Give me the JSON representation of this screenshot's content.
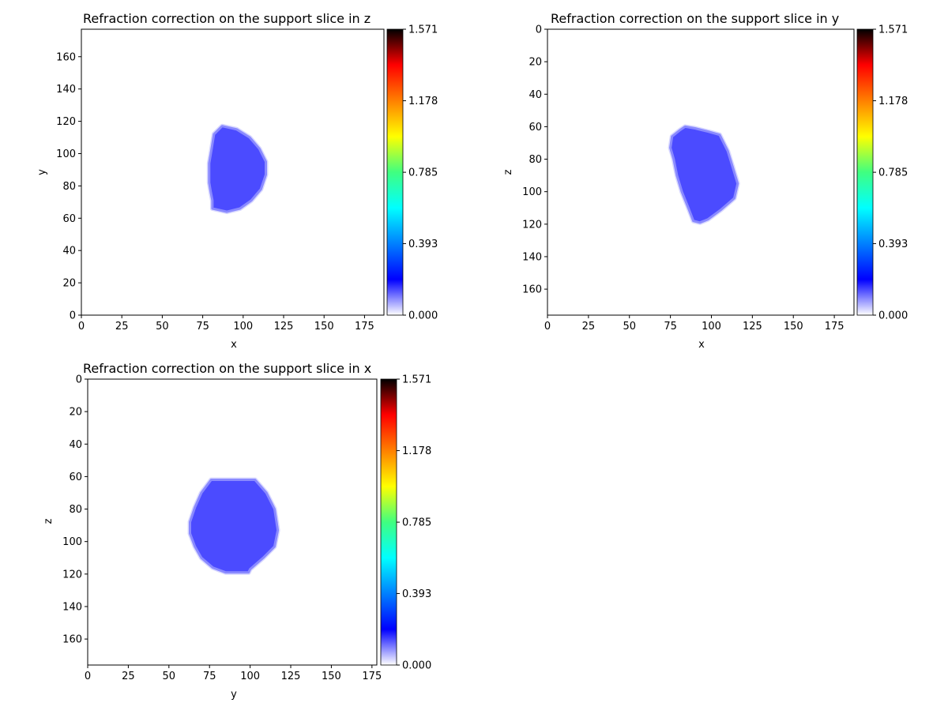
{
  "figure": {
    "background": "#ffffff",
    "colormap": "white-blue-cyan-green-yellow-orange-red-black",
    "colormap_stops": [
      "#ffffff",
      "#0000ff",
      "#0080ff",
      "#00ffff",
      "#40ff80",
      "#ffff00",
      "#ff8000",
      "#ff0000",
      "#000000"
    ],
    "shape_color": "#4b4bff",
    "shape_edge_color": "#eaeaff"
  },
  "chart_data": [
    {
      "type": "heatmap",
      "title": "Refraction correction on the support slice in z",
      "xlabel": "x",
      "ylabel": "y",
      "xlim": [
        0,
        187
      ],
      "ylim": [
        0,
        177
      ],
      "y_direction": "up",
      "x_ticks": [
        "0",
        "25",
        "50",
        "75",
        "100",
        "125",
        "150",
        "175"
      ],
      "y_ticks": [
        "0",
        "20",
        "40",
        "60",
        "80",
        "100",
        "120",
        "140",
        "160"
      ],
      "colorbar": {
        "min": 0.0,
        "max": 1.571,
        "ticks": [
          "0.000",
          "0.393",
          "0.785",
          "1.178",
          "1.571"
        ]
      },
      "support_outline": [
        [
          87,
          117
        ],
        [
          96,
          115
        ],
        [
          104,
          110
        ],
        [
          110,
          103
        ],
        [
          114,
          95
        ],
        [
          114,
          87
        ],
        [
          111,
          78
        ],
        [
          105,
          71
        ],
        [
          98,
          66
        ],
        [
          90,
          64
        ],
        [
          81,
          66
        ],
        [
          81,
          71
        ],
        [
          80,
          76
        ],
        [
          79,
          82
        ],
        [
          79,
          88
        ],
        [
          79,
          94
        ],
        [
          80,
          100
        ],
        [
          81,
          106
        ],
        [
          82,
          112
        ]
      ],
      "value_range": [
        0.0,
        0.2
      ]
    },
    {
      "type": "heatmap",
      "title": "Refraction correction on the support slice in y",
      "xlabel": "x",
      "ylabel": "z",
      "xlim": [
        0,
        187
      ],
      "ylim": [
        176,
        0
      ],
      "y_direction": "down",
      "x_ticks": [
        "0",
        "25",
        "50",
        "75",
        "100",
        "125",
        "150",
        "175"
      ],
      "y_ticks": [
        "0",
        "20",
        "40",
        "60",
        "80",
        "100",
        "120",
        "140",
        "160"
      ],
      "colorbar": {
        "min": 0.0,
        "max": 1.571,
        "ticks": [
          "0.000",
          "0.393",
          "0.785",
          "1.178",
          "1.571"
        ]
      },
      "support_outline": [
        [
          84,
          60
        ],
        [
          90,
          61
        ],
        [
          98,
          63
        ],
        [
          105,
          65
        ],
        [
          110,
          75
        ],
        [
          113,
          85
        ],
        [
          116,
          95
        ],
        [
          114,
          104
        ],
        [
          106,
          111
        ],
        [
          98,
          117
        ],
        [
          93,
          119
        ],
        [
          89,
          118
        ],
        [
          86,
          110
        ],
        [
          82,
          100
        ],
        [
          79,
          90
        ],
        [
          77,
          80
        ],
        [
          75,
          73
        ],
        [
          76,
          66
        ],
        [
          81,
          62
        ]
      ],
      "value_range": [
        0.0,
        0.2
      ]
    },
    {
      "type": "heatmap",
      "title": "Refraction correction on the support slice in x",
      "xlabel": "y",
      "ylabel": "z",
      "xlim": [
        0,
        178
      ],
      "ylim": [
        176,
        0
      ],
      "y_direction": "down",
      "x_ticks": [
        "0",
        "25",
        "50",
        "75",
        "100",
        "125",
        "150",
        "175"
      ],
      "y_ticks": [
        "0",
        "20",
        "40",
        "60",
        "80",
        "100",
        "120",
        "140",
        "160"
      ],
      "colorbar": {
        "min": 0.0,
        "max": 1.571,
        "ticks": [
          "0.000",
          "0.393",
          "0.785",
          "1.178",
          "1.571"
        ]
      },
      "support_outline": [
        [
          76,
          62
        ],
        [
          103,
          62
        ],
        [
          110,
          70
        ],
        [
          115,
          80
        ],
        [
          117,
          93
        ],
        [
          115,
          103
        ],
        [
          108,
          110
        ],
        [
          100,
          117
        ],
        [
          99,
          119
        ],
        [
          85,
          119
        ],
        [
          77,
          116
        ],
        [
          70,
          110
        ],
        [
          66,
          103
        ],
        [
          63,
          95
        ],
        [
          63,
          88
        ],
        [
          66,
          79
        ],
        [
          70,
          70
        ]
      ],
      "value_range": [
        0.0,
        0.2
      ]
    }
  ]
}
